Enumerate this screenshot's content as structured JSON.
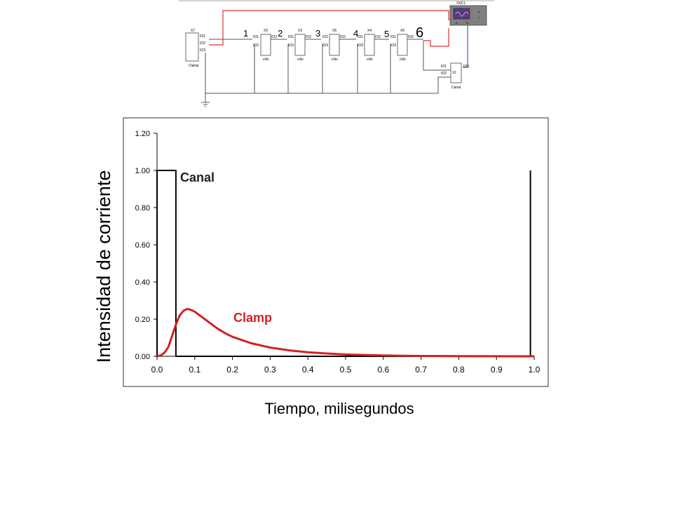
{
  "schematic": {
    "components": [
      {
        "ref": "X7",
        "pins": [
          "IO1",
          "IO2",
          "IO3"
        ],
        "label": "Clamp"
      },
      {
        "ref": "X2",
        "pins": [
          "IO1",
          "IO2",
          "IO3"
        ],
        "label": "cilio"
      },
      {
        "ref": "X3",
        "pins": [
          "IO1",
          "IO2",
          "IO3"
        ],
        "label": "cilio"
      },
      {
        "ref": "X5",
        "pins": [
          "IO1",
          "IO2",
          "IO3"
        ],
        "label": "cilio"
      },
      {
        "ref": "X4",
        "pins": [
          "IO1",
          "IO2",
          "IO3"
        ],
        "label": "cilio"
      },
      {
        "ref": "X6",
        "pins": [
          "IO1",
          "IO2",
          "IO3"
        ],
        "label": "cilio"
      }
    ],
    "canal": {
      "ref": "X1",
      "pins": [
        "IO1",
        "IO2",
        "IO3"
      ],
      "label": "Canal"
    },
    "scope": {
      "ref": "XSC1",
      "terminals": [
        "A",
        "B",
        "G",
        "T"
      ]
    },
    "node_numbers": [
      "1",
      "2",
      "3",
      "4",
      "5",
      "6"
    ],
    "colors": {
      "wire": "#555555",
      "probe_a": "#e03030",
      "probe_b": "#4060c0",
      "scope_body": "#808080",
      "scope_screen": "#5a3a7a"
    }
  },
  "chart_data": {
    "type": "line",
    "xlabel": "Tiempo, milisegundos",
    "ylabel": "Intensidad de corriente",
    "xlim": [
      0.0,
      1.0
    ],
    "ylim": [
      0.0,
      1.2
    ],
    "x_ticks": [
      "0.0",
      "0.1",
      "0.2",
      "0.3",
      "0.4",
      "0.5",
      "0.6",
      "0.7",
      "0.8",
      "0.9",
      "1.0"
    ],
    "y_ticks": [
      "0.00",
      "0.20",
      "0.40",
      "0.60",
      "0.80",
      "1.00",
      "1.20"
    ],
    "grid": false,
    "series": [
      {
        "name": "Canal",
        "color": "#000000",
        "x": [
          0.0,
          0.0,
          0.05,
          0.05,
          0.99,
          0.99
        ],
        "y": [
          0.0,
          1.0,
          1.0,
          0.0,
          0.0,
          1.0
        ]
      },
      {
        "name": "Clamp",
        "color": "#d42020",
        "x": [
          0.0,
          0.01,
          0.02,
          0.03,
          0.04,
          0.05,
          0.06,
          0.07,
          0.08,
          0.09,
          0.1,
          0.12,
          0.14,
          0.16,
          0.18,
          0.2,
          0.25,
          0.3,
          0.35,
          0.4,
          0.45,
          0.5,
          0.55,
          0.6,
          0.65,
          0.7,
          0.8,
          0.9,
          1.0
        ],
        "y": [
          0.0,
          0.005,
          0.02,
          0.05,
          0.11,
          0.17,
          0.22,
          0.245,
          0.255,
          0.25,
          0.24,
          0.21,
          0.18,
          0.15,
          0.125,
          0.105,
          0.07,
          0.047,
          0.032,
          0.022,
          0.015,
          0.01,
          0.007,
          0.005,
          0.003,
          0.002,
          0.001,
          0.0005,
          0.0
        ]
      }
    ]
  }
}
